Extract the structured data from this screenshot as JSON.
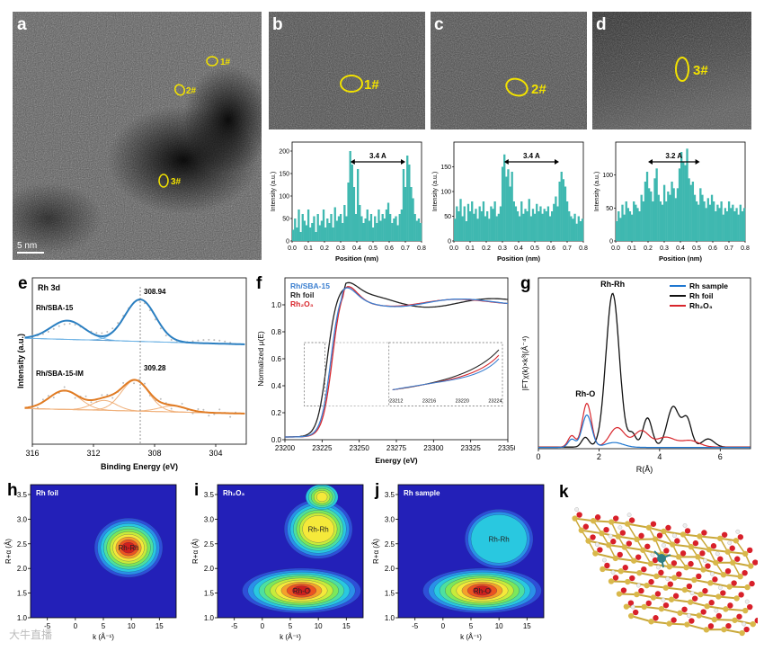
{
  "panels": {
    "a": {
      "label": "a",
      "scale_bar": "5 nm",
      "markers": [
        "1#",
        "2#",
        "3#"
      ]
    },
    "b": {
      "label": "b",
      "marker": "1#"
    },
    "c": {
      "label": "c",
      "marker": "2#"
    },
    "d": {
      "label": "d",
      "marker": "3#"
    },
    "e": {
      "label": "e"
    },
    "f": {
      "label": "f"
    },
    "g": {
      "label": "g"
    },
    "h": {
      "label": "h"
    },
    "i": {
      "label": "i"
    },
    "j": {
      "label": "j"
    },
    "k": {
      "label": "k"
    }
  },
  "watermark": "大牛直播",
  "chart_data": [
    {
      "id": "b",
      "type": "bar",
      "xlabel": "Position (nm)",
      "ylabel": "Intensity (a.u.)",
      "xlim": [
        0,
        0.8
      ],
      "ylim": [
        0,
        220
      ],
      "xticks": [
        "0.0",
        "0.1",
        "0.2",
        "0.3",
        "0.4",
        "0.5",
        "0.6",
        "0.7",
        "0.8"
      ],
      "yticks": [
        "0",
        "50",
        "100",
        "150",
        "200"
      ],
      "annotation": "3.4 A",
      "arrow": [
        0.36,
        0.7
      ],
      "values": [
        25,
        50,
        30,
        70,
        20,
        60,
        45,
        35,
        70,
        30,
        40,
        55,
        20,
        60,
        35,
        45,
        70,
        30,
        50,
        40,
        60,
        30,
        75,
        45,
        55,
        60,
        40,
        80,
        55,
        130,
        200,
        170,
        120,
        60,
        160,
        80,
        55,
        40,
        50,
        70,
        45,
        60,
        30,
        55,
        40,
        70,
        45,
        60,
        50,
        70,
        85,
        60,
        40,
        50,
        55,
        35,
        60,
        70,
        160,
        120,
        190,
        170,
        120,
        95,
        60,
        45,
        50,
        40
      ]
    },
    {
      "id": "c",
      "type": "bar",
      "xlabel": "Position (nm)",
      "ylabel": "Intensity (a.u.)",
      "xlim": [
        0,
        0.8
      ],
      "ylim": [
        0,
        200
      ],
      "xticks": [
        "0.0",
        "0.1",
        "0.2",
        "0.3",
        "0.4",
        "0.5",
        "0.6",
        "0.7",
        "0.8"
      ],
      "yticks": [
        "0",
        "50",
        "100",
        "150"
      ],
      "annotation": "3.4 A",
      "arrow": [
        0.31,
        0.65
      ],
      "values": [
        45,
        70,
        60,
        85,
        50,
        70,
        40,
        75,
        60,
        80,
        55,
        65,
        45,
        70,
        60,
        80,
        50,
        60,
        45,
        70,
        65,
        80,
        50,
        55,
        70,
        150,
        175,
        130,
        145,
        110,
        140,
        80,
        70,
        60,
        50,
        80,
        55,
        65,
        60,
        85,
        50,
        65,
        55,
        75,
        60,
        70,
        55,
        65,
        60,
        70,
        50,
        60,
        75,
        90,
        70,
        120,
        140,
        125,
        110,
        80,
        60,
        50,
        45,
        55,
        35,
        50,
        40,
        45
      ]
    },
    {
      "id": "d",
      "type": "bar",
      "xlabel": "Position (nm)",
      "ylabel": "Intensity (a.u.)",
      "xlim": [
        0,
        0.8
      ],
      "ylim": [
        0,
        150
      ],
      "xticks": [
        "0.0",
        "0.1",
        "0.2",
        "0.3",
        "0.4",
        "0.5",
        "0.6",
        "0.7",
        "0.8"
      ],
      "yticks": [
        "0",
        "50",
        "100"
      ],
      "annotation": "3.2 A",
      "arrow": [
        0.2,
        0.52
      ],
      "values": [
        30,
        45,
        35,
        55,
        40,
        60,
        50,
        45,
        40,
        60,
        55,
        50,
        45,
        70,
        60,
        90,
        105,
        80,
        75,
        60,
        95,
        110,
        70,
        60,
        55,
        85,
        60,
        75,
        70,
        90,
        80,
        65,
        80,
        110,
        135,
        120,
        115,
        140,
        95,
        85,
        90,
        70,
        60,
        55,
        80,
        70,
        60,
        50,
        65,
        55,
        70,
        60,
        45,
        55,
        50,
        60,
        40,
        50,
        45,
        60,
        50,
        55,
        45,
        50,
        40,
        55,
        45,
        50
      ]
    },
    {
      "id": "e",
      "type": "line",
      "title": "Rh 3d",
      "xlabel": "Binding Energy (eV)",
      "ylabel": "Intensity (a.u.)",
      "xlim": [
        316,
        302
      ],
      "xticks": [
        "316",
        "312",
        "308",
        "304"
      ],
      "series": [
        {
          "name": "Rh/SBA-15",
          "peak": "308.94",
          "color": "#2b7fc1"
        },
        {
          "name": "Rh/SBA-15-IM",
          "peak": "309.28",
          "color": "#e07b23"
        }
      ]
    },
    {
      "id": "f",
      "type": "line",
      "xlabel": "Energy (eV)",
      "ylabel": "Normalized μ(E)",
      "xlim": [
        23200,
        23350
      ],
      "ylim": [
        0,
        1.2
      ],
      "xticks": [
        "23200",
        "23225",
        "23250",
        "23275",
        "23300",
        "23325",
        "23350"
      ],
      "yticks": [
        "0.0",
        "0.2",
        "0.4",
        "0.6",
        "0.8",
        "1.0"
      ],
      "inset_xticks": [
        "23212",
        "23216",
        "23220",
        "23224"
      ],
      "series": [
        {
          "name": "Rh/SBA-15",
          "color": "#3b7fd0"
        },
        {
          "name": "Rh foil",
          "color": "#222222"
        },
        {
          "name": "Rh₂O₃",
          "color": "#d8262c"
        }
      ]
    },
    {
      "id": "g",
      "type": "line",
      "xlabel": "R(Å)",
      "ylabel": "|FTχ(k)×k³|(Å⁻⁴)",
      "xlim": [
        0,
        7
      ],
      "xticks": [
        "0",
        "2",
        "4",
        "6"
      ],
      "annotations": [
        "Rh-Rh",
        "Rh-O"
      ],
      "series": [
        {
          "name": "Rh sample",
          "color": "#1f77d0"
        },
        {
          "name": "Rh foil",
          "color": "#111111"
        },
        {
          "name": "Rh₂O₃",
          "color": "#d8262c"
        }
      ]
    },
    {
      "id": "h",
      "type": "heatmap",
      "title": "Rh foil",
      "xlabel": "k (Å⁻¹)",
      "ylabel": "R+α (Å)",
      "xticks": [
        "-5",
        "0",
        "5",
        "10",
        "15"
      ],
      "yticks": [
        "1.0",
        "1.5",
        "2.0",
        "2.5",
        "3.0",
        "3.5"
      ],
      "xlim": [
        -8,
        18
      ],
      "ylim": [
        1.0,
        3.7
      ],
      "spots": [
        {
          "label": "Rh-Rh",
          "k": 9.5,
          "r": 2.42,
          "level": 1.0
        }
      ]
    },
    {
      "id": "i",
      "type": "heatmap",
      "title": "Rh₂O₃",
      "xlabel": "k (Å⁻¹)",
      "ylabel": "R+α (Å)",
      "xticks": [
        "-5",
        "0",
        "5",
        "10",
        "15"
      ],
      "yticks": [
        "1.0",
        "1.5",
        "2.0",
        "2.5",
        "3.0",
        "3.5"
      ],
      "xlim": [
        -8,
        18
      ],
      "ylim": [
        1.0,
        3.7
      ],
      "spots": [
        {
          "label": "Rh-O",
          "k": 7,
          "r": 1.55,
          "level": 1.0
        },
        {
          "label": "Rh-Rh",
          "k": 10,
          "r": 2.8,
          "level": 0.7
        }
      ]
    },
    {
      "id": "j",
      "type": "heatmap",
      "title": "Rh sample",
      "xlabel": "k (Å⁻¹)",
      "ylabel": "R+α (Å)",
      "xticks": [
        "-5",
        "0",
        "5",
        "10",
        "15"
      ],
      "yticks": [
        "1.0",
        "1.5",
        "2.0",
        "2.5",
        "3.0",
        "3.5"
      ],
      "xlim": [
        -8,
        18
      ],
      "ylim": [
        1.0,
        3.7
      ],
      "spots": [
        {
          "label": "Rh-O",
          "k": 7,
          "r": 1.55,
          "level": 1.0
        },
        {
          "label": "Rh-Rh",
          "k": 10,
          "r": 2.6,
          "level": 0.3
        }
      ]
    }
  ]
}
